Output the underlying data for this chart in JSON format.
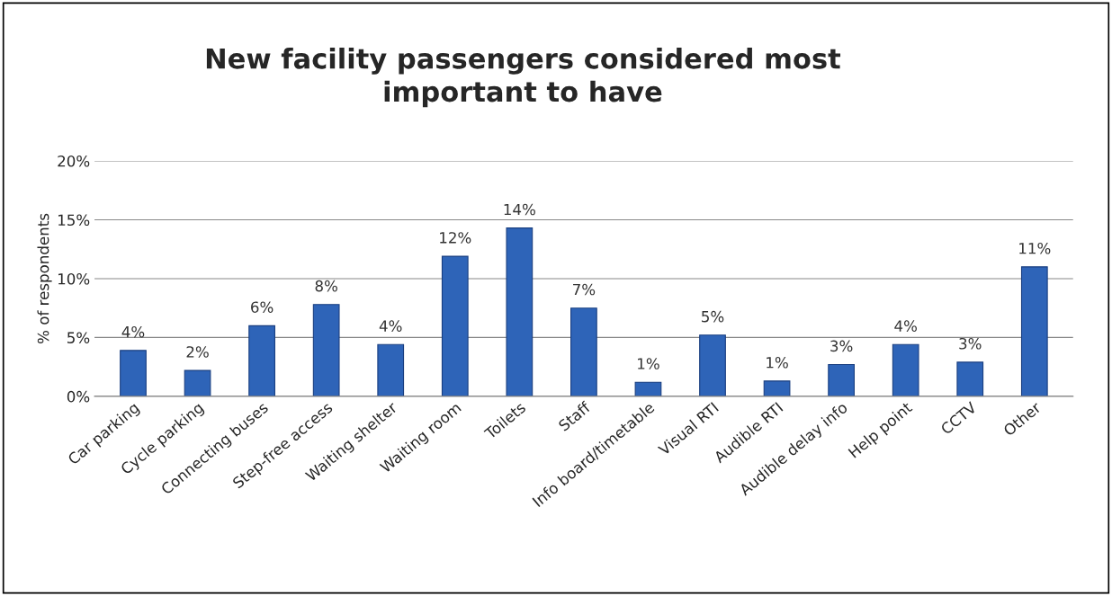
{
  "chart_data": {
    "type": "bar",
    "title": "New facility passengers considered most\nimportant to have",
    "ylabel": "% of respondents",
    "categories": [
      "Car parking",
      "Cycle parking",
      "Connecting buses",
      "Step-free access",
      "Waiting shelter",
      "Waiting room",
      "Toilets",
      "Staff",
      "Info board/timetable",
      "Visual RTI",
      "Audible RTI",
      "Audible delay info",
      "Help point",
      "CCTV",
      "Other"
    ],
    "values": [
      3.9,
      2.2,
      6.0,
      7.8,
      4.4,
      11.9,
      14.3,
      7.5,
      1.2,
      5.2,
      1.3,
      2.7,
      4.4,
      2.9,
      11.0
    ],
    "value_labels": [
      "4%",
      "2%",
      "6%",
      "8%",
      "4%",
      "12%",
      "14%",
      "7%",
      "1%",
      "5%",
      "1%",
      "3%",
      "4%",
      "3%",
      "11%"
    ],
    "color": "#2e64b8",
    "ylim": [
      0,
      20
    ],
    "yticks": [
      {
        "value": 0,
        "label": "0%"
      },
      {
        "value": 5,
        "label": "5%"
      },
      {
        "value": 10,
        "label": "10%"
      },
      {
        "value": 15,
        "label": "15%"
      },
      {
        "value": 20,
        "label": "20%"
      }
    ],
    "grid": "y",
    "legend": false
  }
}
